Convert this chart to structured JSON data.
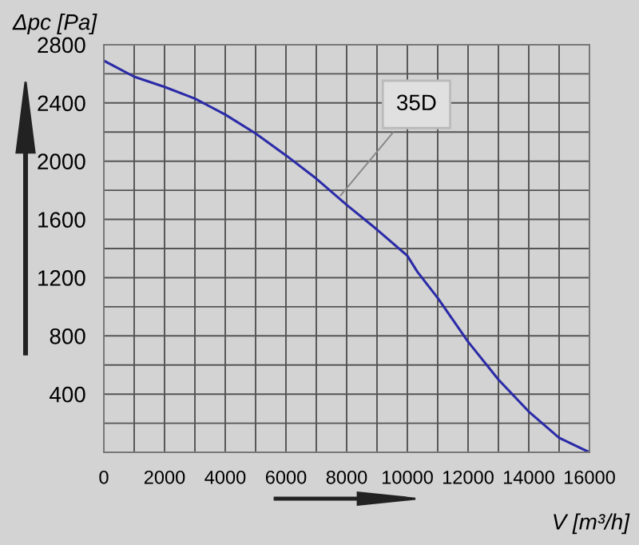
{
  "chart_data": {
    "type": "line",
    "xlabel": "V [m³/h]",
    "ylabel": "Δpc [Pa]",
    "x": [
      0,
      1000,
      2000,
      3000,
      4000,
      5000,
      6000,
      7000,
      8000,
      9000,
      10000,
      10330,
      11000,
      12000,
      13000,
      14000,
      15000,
      16000
    ],
    "series": [
      {
        "color": "#2b2ba8",
        "values": [
          2690,
          2580,
          2510,
          2430,
          2320,
          2190,
          2040,
          1880,
          1700,
          1530,
          1350,
          1240,
          1060,
          760,
          500,
          280,
          100,
          0
        ]
      }
    ],
    "xlim": [
      0,
      16000
    ],
    "ylim": [
      0,
      2800
    ],
    "xticks": [
      0,
      {
        "value": 1000,
        "label": null
      },
      2000,
      {
        "value": 3000,
        "label": null
      },
      4000,
      {
        "value": 5000,
        "label": null
      },
      6000,
      {
        "value": 7000,
        "label": null
      },
      8000,
      {
        "value": 9000,
        "label": null
      },
      10000,
      {
        "value": 11000,
        "label": null
      },
      12000,
      {
        "value": 13000,
        "label": null
      },
      14000,
      {
        "value": 15000,
        "label": null
      },
      16000
    ],
    "yticks": [
      {
        "value": 0,
        "label": null
      },
      {
        "value": 200,
        "label": null
      },
      400,
      {
        "value": 600,
        "label": null
      },
      800,
      {
        "value": 1000,
        "label": null
      },
      1200,
      {
        "value": 1400,
        "label": null
      },
      1600,
      {
        "value": 1800,
        "label": null
      },
      2000,
      {
        "value": 2200,
        "label": null
      },
      2400,
      {
        "value": 2600,
        "label": null
      },
      2800
    ],
    "grid": true,
    "marker": "none",
    "line_style": "solid",
    "annotations": [
      {
        "text": "35D",
        "x": 7700,
        "y": 1740
      }
    ]
  }
}
